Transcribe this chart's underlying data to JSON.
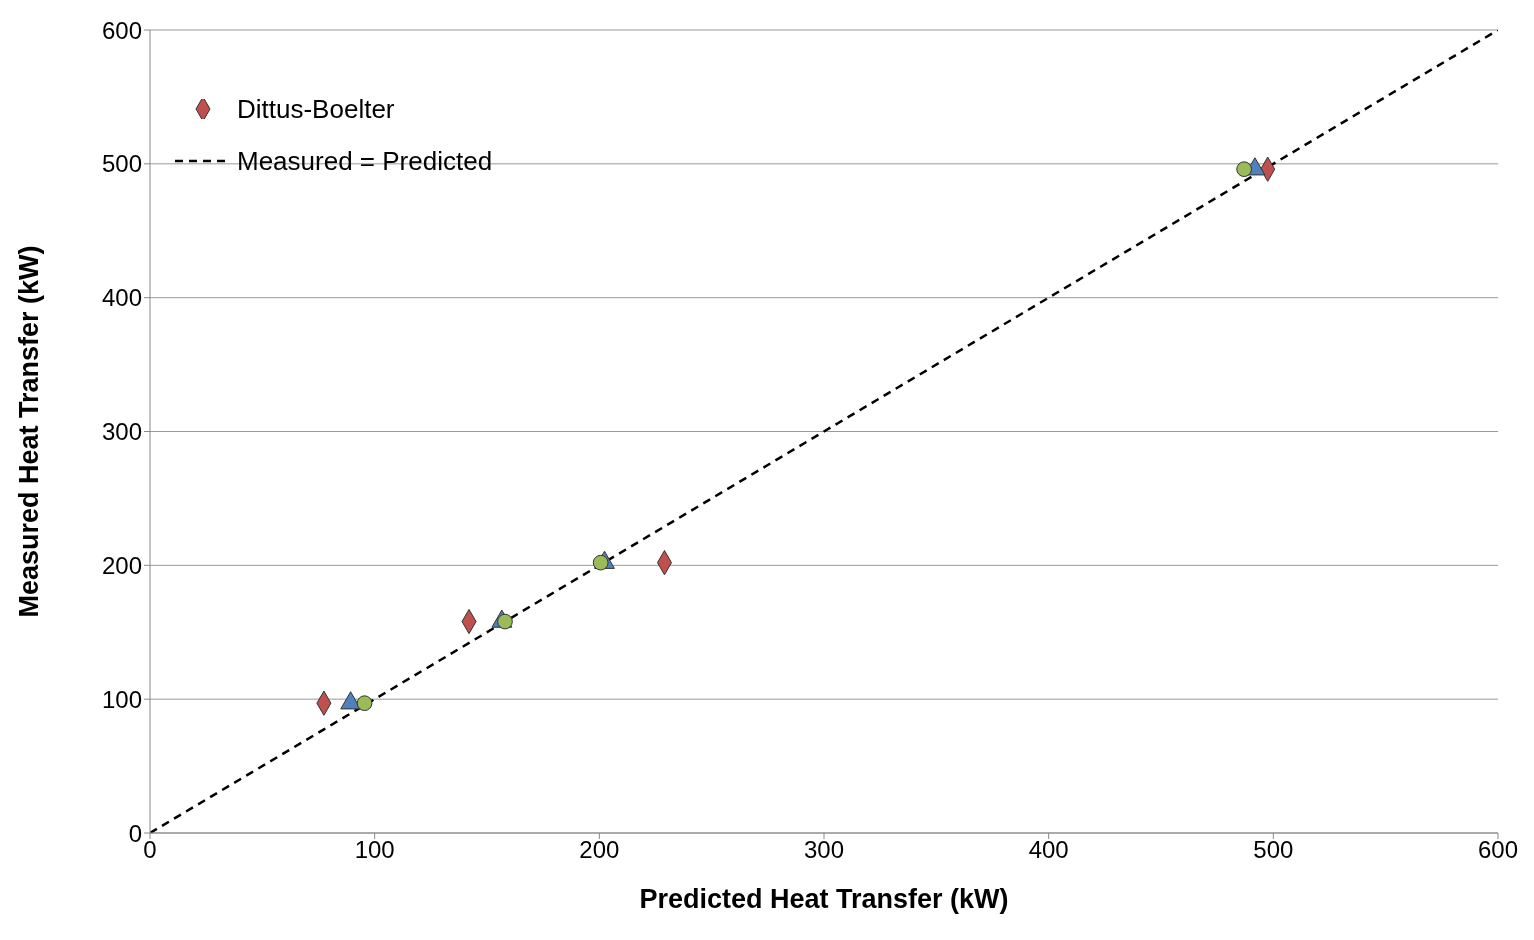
{
  "chart_data": {
    "type": "scatter",
    "xlabel": "Predicted Heat Transfer (kW)",
    "ylabel": "Measured Heat Transfer (kW)",
    "xlim": [
      0,
      600
    ],
    "ylim": [
      0,
      600
    ],
    "xticks": [
      0,
      100,
      200,
      300,
      400,
      500,
      600
    ],
    "yticks": [
      0,
      100,
      200,
      300,
      400,
      500,
      600
    ],
    "grid": "y",
    "legend": "top left",
    "series": [
      {
        "color": "#9bbb59",
        "marker": "circle",
        "x": [
          95.5,
          158,
          200.6,
          487
        ],
        "values": [
          97,
          158,
          202,
          496
        ]
      },
      {
        "color": "#4f81bd",
        "marker": "triangle",
        "x": [
          89.3,
          156.6,
          202.3,
          491.8
        ],
        "values": [
          97,
          158,
          202,
          496
        ]
      },
      {
        "name": "Dittus-Boelter",
        "color": "#c0504d",
        "marker": "diamond",
        "x": [
          77.4,
          142,
          229,
          497.5
        ],
        "values": [
          97,
          158,
          202,
          496
        ]
      },
      {
        "name": "Measured = Predicted",
        "type": "line",
        "color": "#000000",
        "line_style": "dashed",
        "marker": "none",
        "x": [
          0,
          600
        ],
        "values": [
          0,
          600
        ]
      }
    ]
  }
}
